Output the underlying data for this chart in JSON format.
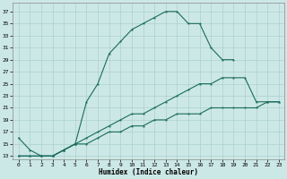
{
  "xlabel": "Humidex (Indice chaleur)",
  "bg_color": "#cce8e6",
  "grid_color": "#aad0ce",
  "line_color": "#1a6b5e",
  "xlim": [
    -0.5,
    23.5
  ],
  "ylim": [
    12.5,
    38.5
  ],
  "xticks": [
    0,
    1,
    2,
    3,
    4,
    5,
    6,
    7,
    8,
    9,
    10,
    11,
    12,
    13,
    14,
    15,
    16,
    17,
    18,
    19,
    20,
    21,
    22,
    23
  ],
  "yticks": [
    13,
    15,
    17,
    19,
    21,
    23,
    25,
    27,
    29,
    31,
    33,
    35,
    37
  ],
  "l1x": [
    0,
    1,
    2,
    3,
    4,
    5,
    6,
    7,
    8,
    9,
    10,
    11,
    12,
    13,
    14,
    15,
    16,
    17,
    18,
    19
  ],
  "l1y": [
    16,
    14,
    13,
    13,
    14,
    15,
    22,
    25,
    30,
    32,
    34,
    35,
    36,
    37,
    37,
    35,
    35,
    31,
    29,
    29
  ],
  "l2x": [
    0,
    1,
    2,
    3,
    4,
    5,
    6,
    7,
    8,
    9,
    10,
    11,
    12,
    13,
    14,
    15,
    16,
    17,
    18,
    19,
    20,
    21,
    22,
    23
  ],
  "l2y": [
    13,
    13,
    13,
    13,
    14,
    15,
    16,
    17,
    18,
    19,
    20,
    20,
    21,
    22,
    23,
    24,
    25,
    25,
    26,
    26,
    26,
    22,
    22,
    22
  ],
  "l3x": [
    0,
    1,
    2,
    3,
    4,
    5,
    6,
    7,
    8,
    9,
    10,
    11,
    12,
    13,
    14,
    15,
    16,
    17,
    18,
    19,
    20,
    21,
    22,
    23
  ],
  "l3y": [
    13,
    13,
    13,
    13,
    14,
    15,
    15,
    16,
    17,
    17,
    18,
    18,
    19,
    19,
    20,
    20,
    20,
    21,
    21,
    21,
    21,
    21,
    22,
    22
  ]
}
